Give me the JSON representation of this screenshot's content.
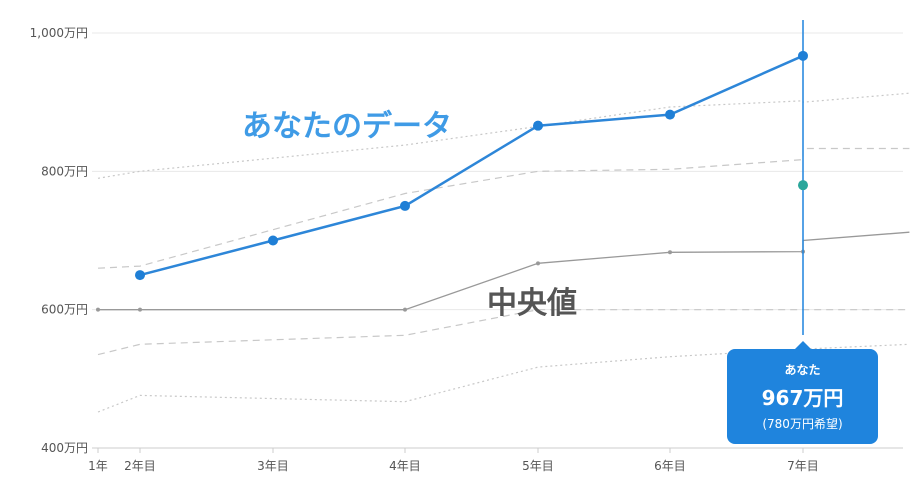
{
  "chart_data": {
    "type": "line",
    "x": [
      "1年",
      "2年目",
      "3年目",
      "4年目",
      "5年目",
      "6年目",
      "7年目"
    ],
    "y_ticks": [
      "400万円",
      "600万円",
      "800万円",
      "1,000万円"
    ],
    "ylim": [
      400,
      1000
    ],
    "grid": true,
    "series": [
      {
        "name": "あなたのデータ",
        "style": "solid",
        "color": "#2d86d8",
        "points": [
          [
            1,
            650
          ],
          [
            2,
            700
          ],
          [
            3,
            750
          ],
          [
            4,
            866
          ],
          [
            5,
            882
          ],
          [
            6,
            967
          ]
        ]
      },
      {
        "name": "中央値",
        "style": "solid",
        "color": "#999999",
        "points": [
          [
            0,
            600
          ],
          [
            0.3,
            600
          ],
          [
            2,
            600
          ],
          [
            3,
            667
          ],
          [
            4,
            683
          ],
          [
            5,
            684
          ],
          [
            6,
            700
          ],
          [
            6.8,
            712
          ]
        ]
      },
      {
        "style": "dashed",
        "color": "#c8c8c8",
        "points": [
          [
            0,
            660
          ],
          [
            0.3,
            663
          ],
          [
            2,
            768
          ],
          [
            3,
            800
          ],
          [
            4,
            803
          ],
          [
            5,
            817
          ],
          [
            6,
            833
          ],
          [
            6.8,
            833
          ]
        ]
      },
      {
        "style": "dashed",
        "color": "#c8c8c8",
        "points": [
          [
            0,
            535
          ],
          [
            0.3,
            550
          ],
          [
            2,
            563
          ],
          [
            3,
            600
          ],
          [
            4,
            600
          ],
          [
            5,
            600
          ],
          [
            6,
            600
          ],
          [
            6.8,
            600
          ]
        ]
      },
      {
        "style": "dotted",
        "color": "#c8c8c8",
        "points": [
          [
            0,
            790
          ],
          [
            0.3,
            800
          ],
          [
            2,
            838
          ],
          [
            3,
            865
          ],
          [
            4,
            893
          ],
          [
            5,
            902
          ],
          [
            6,
            900
          ],
          [
            6.8,
            913
          ]
        ]
      },
      {
        "style": "dotted",
        "color": "#c8c8c8",
        "points": [
          [
            0,
            452
          ],
          [
            0.3,
            476
          ],
          [
            2,
            467
          ],
          [
            3,
            517
          ],
          [
            4,
            532
          ],
          [
            5,
            543
          ],
          [
            6,
            543
          ],
          [
            6.8,
            550
          ]
        ]
      }
    ],
    "desired_point": {
      "x": 6,
      "y": 780,
      "color": "#2aa79b"
    },
    "cursor_x": 6,
    "annotations": {
      "you": "あなたのデータ",
      "median": "中央値"
    },
    "tooltip": {
      "label": "あなた",
      "value": "967万円",
      "wish": "(780万円希望)"
    }
  }
}
